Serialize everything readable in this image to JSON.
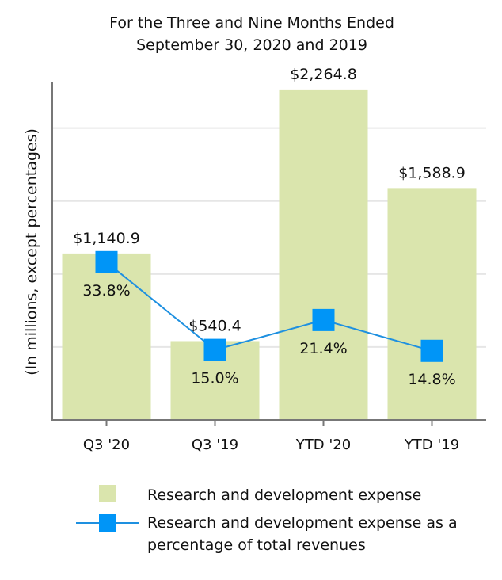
{
  "chart_data": {
    "type": "bar",
    "title_lines": [
      "For the Three and Nine Months Ended",
      "September 30, 2020 and 2019"
    ],
    "ylabel": "(In millions, except percentages)",
    "categories": [
      "Q3 '20",
      "Q3 '19",
      "YTD '20",
      "YTD '19"
    ],
    "series": [
      {
        "name": "Research and development expense",
        "kind": "bar",
        "values": [
          1140.9,
          540.4,
          2264.8,
          1588.9
        ],
        "labels": [
          "$1,140.9",
          "$540.4",
          "$2,264.8",
          "$1,588.9"
        ],
        "color": "#dae5ad"
      },
      {
        "name": "Research and development expense as a percentage of total revenues",
        "legend_lines": [
          "Research and development expense as a",
          "percentage of total revenues"
        ],
        "kind": "line",
        "values": [
          33.8,
          15.0,
          21.4,
          14.8
        ],
        "labels": [
          "33.8%",
          "15.0%",
          "21.4%",
          "14.8%"
        ],
        "color": "#0095f7",
        "line_color": "#1e90e0"
      }
    ],
    "ylim": [
      0,
      2400
    ],
    "pct_ylim": [
      0,
      75
    ],
    "grid": true,
    "legend_position": "bottom"
  }
}
